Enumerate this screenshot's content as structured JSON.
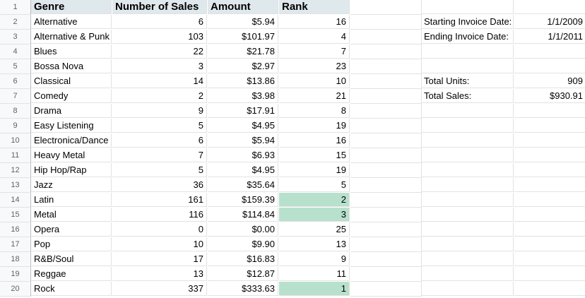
{
  "headers": {
    "genre": "Genre",
    "sales": "Number of Sales",
    "amount": "Amount",
    "rank": "Rank"
  },
  "row_numbers": [
    "1",
    "2",
    "3",
    "4",
    "5",
    "6",
    "7",
    "8",
    "9",
    "10",
    "11",
    "12",
    "13",
    "14",
    "15",
    "16",
    "17",
    "18",
    "19",
    "20"
  ],
  "rows": [
    {
      "genre": "Alternative",
      "sales": "6",
      "amount": "$5.94",
      "rank": "16"
    },
    {
      "genre": "Alternative & Punk",
      "sales": "103",
      "amount": "$101.97",
      "rank": "4"
    },
    {
      "genre": "Blues",
      "sales": "22",
      "amount": "$21.78",
      "rank": "7"
    },
    {
      "genre": "Bossa Nova",
      "sales": "3",
      "amount": "$2.97",
      "rank": "23"
    },
    {
      "genre": "Classical",
      "sales": "14",
      "amount": "$13.86",
      "rank": "10"
    },
    {
      "genre": "Comedy",
      "sales": "2",
      "amount": "$3.98",
      "rank": "21"
    },
    {
      "genre": "Drama",
      "sales": "9",
      "amount": "$17.91",
      "rank": "8"
    },
    {
      "genre": "Easy Listening",
      "sales": "5",
      "amount": "$4.95",
      "rank": "19"
    },
    {
      "genre": "Electronica/Dance",
      "sales": "6",
      "amount": "$5.94",
      "rank": "16"
    },
    {
      "genre": "Heavy Metal",
      "sales": "7",
      "amount": "$6.93",
      "rank": "15"
    },
    {
      "genre": "Hip Hop/Rap",
      "sales": "5",
      "amount": "$4.95",
      "rank": "19"
    },
    {
      "genre": "Jazz",
      "sales": "36",
      "amount": "$35.64",
      "rank": "5"
    },
    {
      "genre": "Latin",
      "sales": "161",
      "amount": "$159.39",
      "rank": "2",
      "highlight": true
    },
    {
      "genre": "Metal",
      "sales": "116",
      "amount": "$114.84",
      "rank": "3",
      "highlight": true
    },
    {
      "genre": "Opera",
      "sales": "0",
      "amount": "$0.00",
      "rank": "25"
    },
    {
      "genre": "Pop",
      "sales": "10",
      "amount": "$9.90",
      "rank": "13"
    },
    {
      "genre": "R&B/Soul",
      "sales": "17",
      "amount": "$16.83",
      "rank": "9"
    },
    {
      "genre": "Reggae",
      "sales": "13",
      "amount": "$12.87",
      "rank": "11"
    },
    {
      "genre": "Rock",
      "sales": "337",
      "amount": "$333.63",
      "rank": "1",
      "highlight": true
    }
  ],
  "summary": {
    "start_label": "Starting Invoice Date:",
    "start_value": "1/1/2009",
    "end_label": "Ending Invoice Date:",
    "end_value": "1/1/2011",
    "units_label": "Total Units:",
    "units_value": "909",
    "sales_label": "Total Sales:",
    "sales_value": "$930.91"
  },
  "colors": {
    "header_fill": "#dfe8ec",
    "rank_highlight": "#b7e1cd"
  }
}
